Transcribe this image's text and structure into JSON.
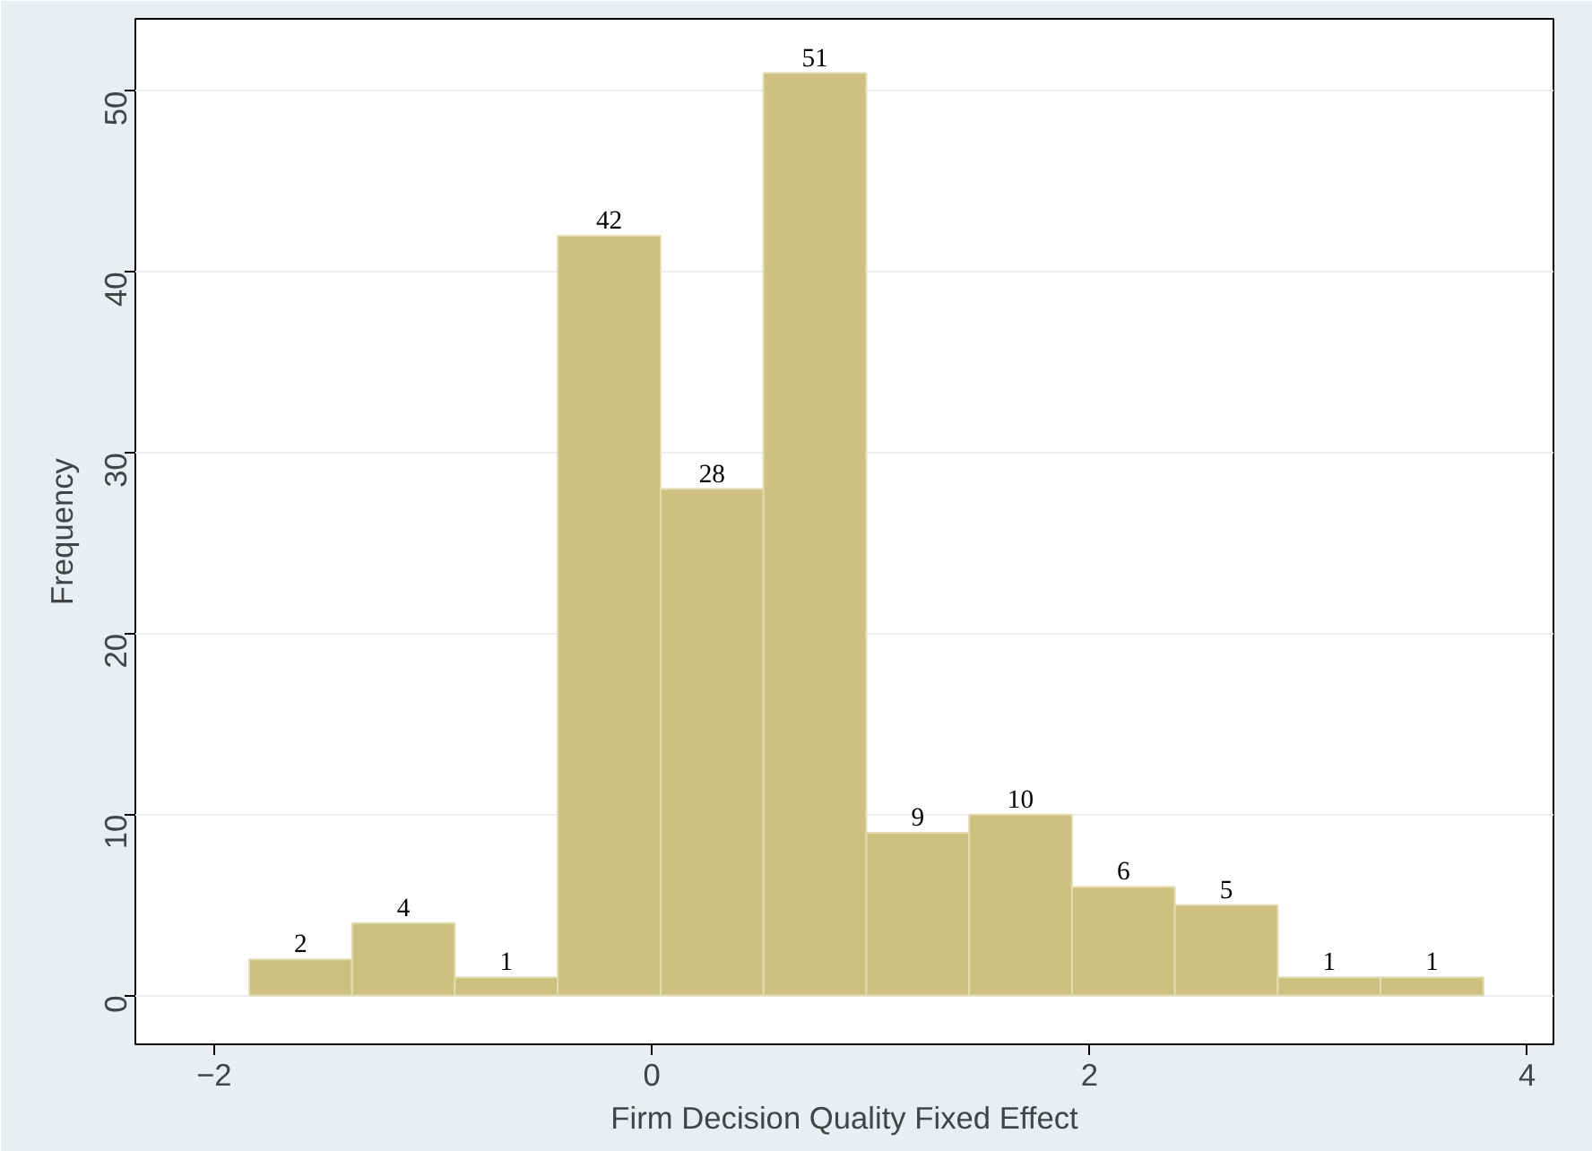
{
  "chart_data": {
    "type": "histogram",
    "xlabel": "Firm Decision Quality Fixed Effect",
    "ylabel": "Frequency",
    "bins": [
      -1.84,
      -1.37,
      -0.9,
      -0.43,
      0.04,
      0.51,
      0.98,
      1.45,
      1.92,
      2.39,
      2.86,
      3.33,
      3.8
    ],
    "values": [
      2,
      4,
      1,
      42,
      28,
      51,
      9,
      10,
      6,
      5,
      1,
      1
    ],
    "color": "#cdc17f",
    "data_labels": true,
    "grid": "y",
    "xlim": [
      -2.36,
      4.12
    ],
    "ylim": [
      -2.7,
      54
    ],
    "xticks": [
      -2,
      0,
      2,
      4
    ],
    "yticks": [
      0,
      10,
      20,
      30,
      40,
      50
    ]
  }
}
